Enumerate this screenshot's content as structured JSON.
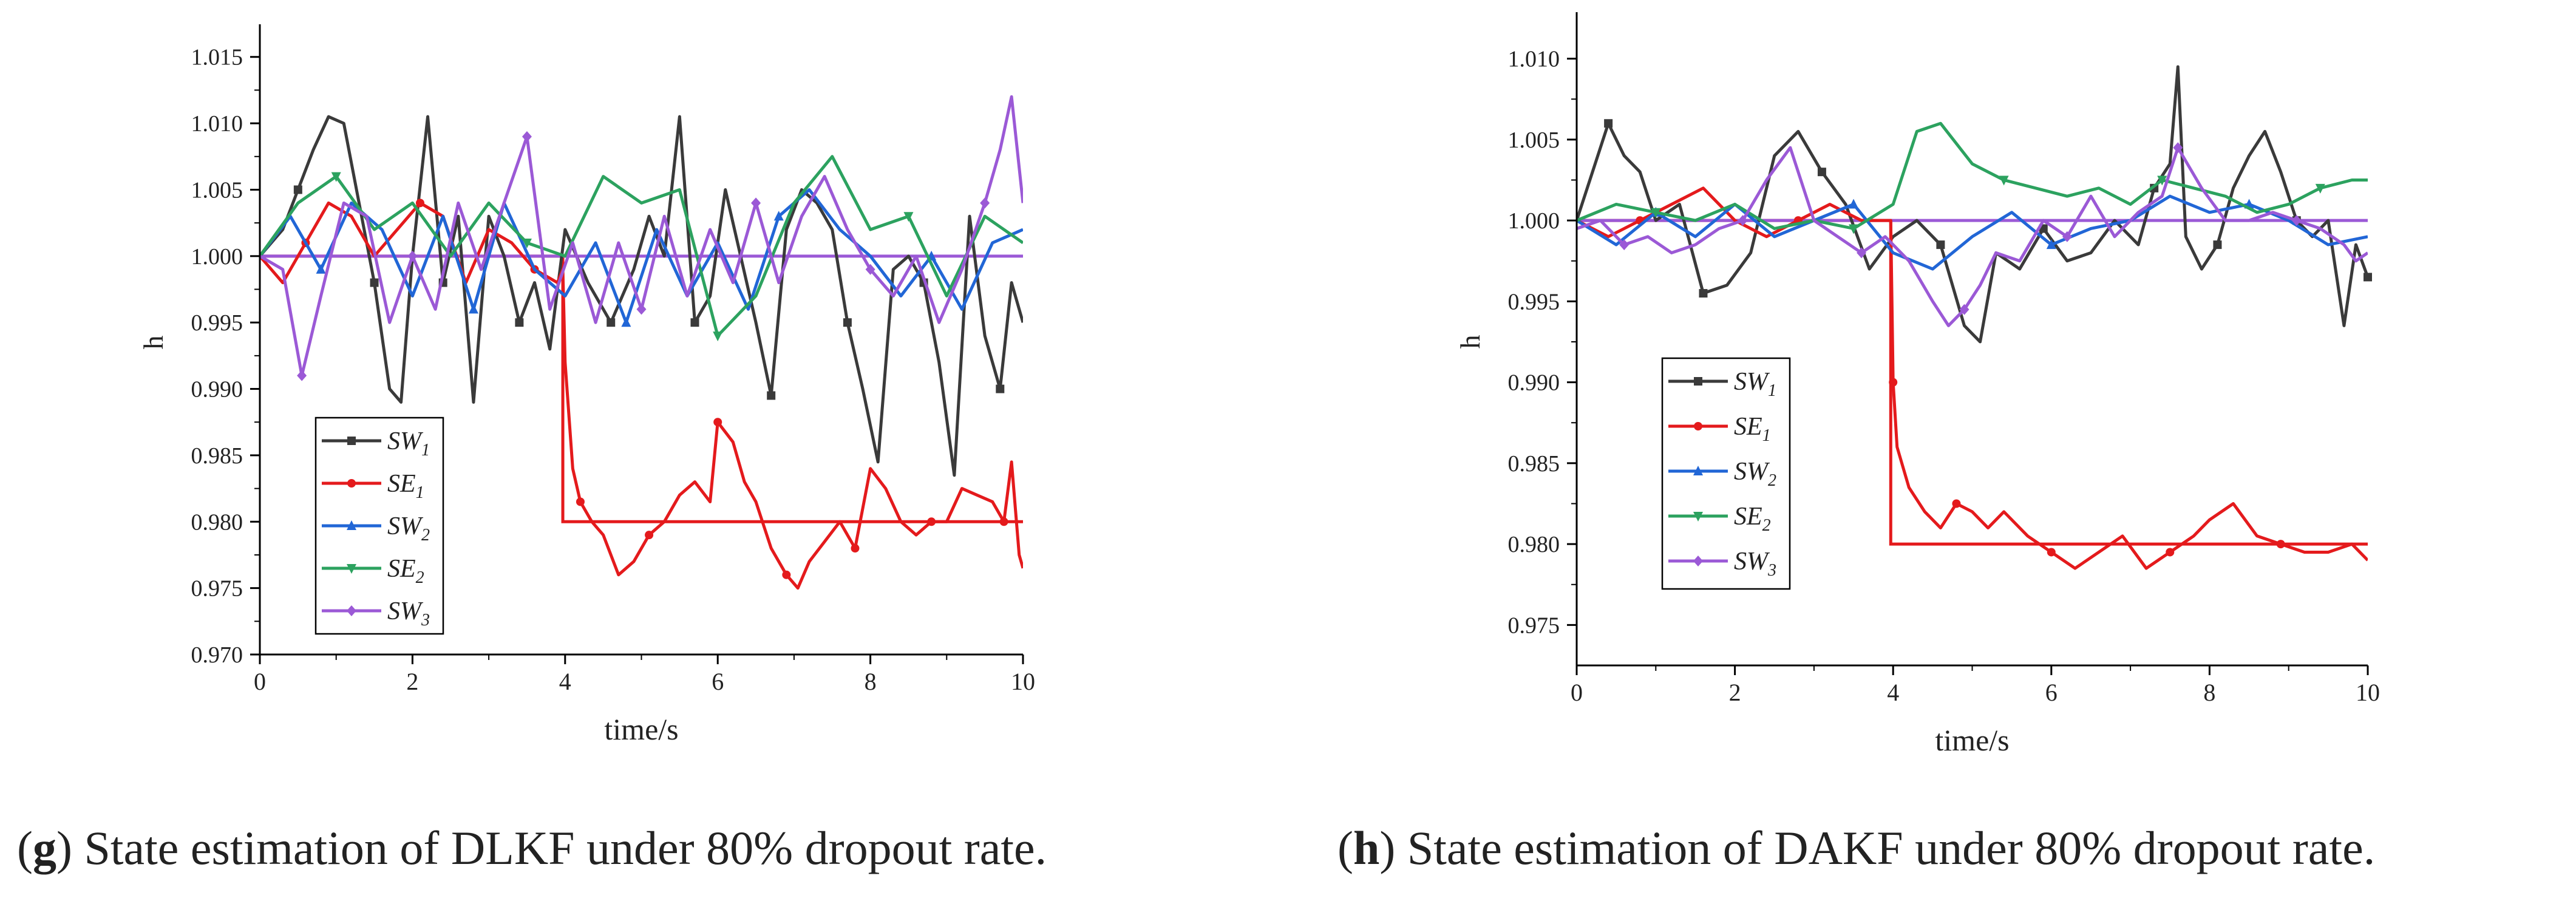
{
  "captions": [
    {
      "letter": "g",
      "text": ") State estimation of DLKF under 80% dropout rate."
    },
    {
      "letter": "h",
      "text": ") State estimation of DAKF under 80% dropout rate."
    }
  ],
  "chart_data": [
    {
      "type": "line",
      "panel": "g",
      "title": "",
      "xlabel": "time/s",
      "ylabel": "h",
      "xlim": [
        0,
        10
      ],
      "ylim": [
        0.97,
        1.017
      ],
      "xticks": [
        "0",
        "2",
        "4",
        "6",
        "8",
        "10"
      ],
      "yticks": [
        "0.970",
        "0.975",
        "0.980",
        "0.985",
        "0.990",
        "0.995",
        "1.000",
        "1.005",
        "1.010",
        "1.015"
      ],
      "legend_position": "lower-left",
      "reference_lines": [
        {
          "color": "#e41a1c",
          "x": [
            0,
            3.97,
            3.97,
            10
          ],
          "y": [
            1.0,
            1.0,
            0.98,
            0.98
          ]
        },
        {
          "color": "#9b59d6",
          "x": [
            0,
            10
          ],
          "y": [
            1.0,
            1.0
          ]
        }
      ],
      "series": [
        {
          "name": "SW",
          "sub": "1",
          "color": "#3a3a3a",
          "marker": "square",
          "x": [
            0,
            0.3,
            0.5,
            0.7,
            0.9,
            1.1,
            1.3,
            1.5,
            1.7,
            1.85,
            2.0,
            2.2,
            2.4,
            2.6,
            2.8,
            3.0,
            3.2,
            3.4,
            3.6,
            3.8,
            4.0,
            4.3,
            4.6,
            4.9,
            5.1,
            5.3,
            5.5,
            5.7,
            5.9,
            6.1,
            6.3,
            6.5,
            6.7,
            6.9,
            7.1,
            7.3,
            7.5,
            7.7,
            7.9,
            8.1,
            8.3,
            8.5,
            8.7,
            8.9,
            9.1,
            9.3,
            9.5,
            9.7,
            9.85,
            10
          ],
          "y": [
            1.0,
            1.002,
            1.005,
            1.008,
            1.0105,
            1.01,
            1.004,
            0.998,
            0.99,
            0.989,
            1.0,
            1.0105,
            0.998,
            1.003,
            0.989,
            1.003,
            1.0,
            0.995,
            0.998,
            0.993,
            1.002,
            0.998,
            0.995,
            0.999,
            1.003,
            1.0,
            1.0105,
            0.995,
            0.997,
            1.005,
            1.0,
            0.995,
            0.9895,
            1.002,
            1.005,
            1.004,
            1.002,
            0.995,
            0.99,
            0.9845,
            0.999,
            1.0,
            0.998,
            0.992,
            0.9835,
            1.003,
            0.994,
            0.99,
            0.998,
            0.995
          ]
        },
        {
          "name": "SE",
          "sub": "1",
          "color": "#e41a1c",
          "marker": "circle",
          "x": [
            0,
            0.3,
            0.6,
            0.9,
            1.2,
            1.5,
            1.8,
            2.1,
            2.4,
            2.7,
            3.0,
            3.3,
            3.6,
            3.9,
            3.97,
            4.0,
            4.1,
            4.2,
            4.35,
            4.5,
            4.7,
            4.9,
            5.1,
            5.3,
            5.5,
            5.7,
            5.9,
            6.0,
            6.2,
            6.35,
            6.5,
            6.7,
            6.9,
            7.05,
            7.2,
            7.4,
            7.6,
            7.8,
            8.0,
            8.2,
            8.4,
            8.6,
            8.8,
            9.0,
            9.2,
            9.4,
            9.6,
            9.75,
            9.85,
            9.95,
            10
          ],
          "y": [
            1.0,
            0.998,
            1.001,
            1.004,
            1.003,
            1.0,
            1.002,
            1.004,
            1.003,
            0.998,
            1.002,
            1.001,
            0.999,
            0.998,
            0.999,
            0.992,
            0.984,
            0.9815,
            0.98,
            0.979,
            0.976,
            0.977,
            0.979,
            0.98,
            0.982,
            0.983,
            0.9815,
            0.9875,
            0.986,
            0.983,
            0.9815,
            0.978,
            0.976,
            0.975,
            0.977,
            0.9785,
            0.98,
            0.978,
            0.984,
            0.9825,
            0.98,
            0.979,
            0.98,
            0.98,
            0.9825,
            0.982,
            0.9815,
            0.98,
            0.9845,
            0.9775,
            0.9765
          ]
        },
        {
          "name": "SW",
          "sub": "2",
          "color": "#2166d6",
          "marker": "triangle",
          "x": [
            0,
            0.4,
            0.8,
            1.2,
            1.6,
            2.0,
            2.4,
            2.8,
            3.2,
            3.6,
            4.0,
            4.4,
            4.8,
            5.2,
            5.6,
            6.0,
            6.4,
            6.8,
            7.2,
            7.6,
            8.0,
            8.4,
            8.8,
            9.2,
            9.6,
            10
          ],
          "y": [
            1.0,
            1.003,
            0.999,
            1.004,
            1.002,
            0.997,
            1.003,
            0.996,
            1.004,
            0.999,
            0.997,
            1.001,
            0.995,
            1.002,
            0.997,
            1.001,
            0.996,
            1.003,
            1.005,
            1.002,
            1.0,
            0.997,
            1.0,
            0.996,
            1.001,
            1.002
          ]
        },
        {
          "name": "SE",
          "sub": "2",
          "color": "#2ca25f",
          "marker": "triangle-down",
          "x": [
            0,
            0.5,
            1.0,
            1.5,
            2.0,
            2.5,
            3.0,
            3.5,
            4.0,
            4.5,
            5.0,
            5.5,
            6.0,
            6.5,
            7.0,
            7.5,
            8.0,
            8.5,
            9.0,
            9.5,
            10
          ],
          "y": [
            1.0,
            1.004,
            1.006,
            1.002,
            1.004,
            1.0,
            1.004,
            1.001,
            1.0,
            1.006,
            1.004,
            1.005,
            0.994,
            0.997,
            1.004,
            1.0075,
            1.002,
            1.003,
            0.997,
            1.003,
            1.001
          ]
        },
        {
          "name": "SW",
          "sub": "3",
          "color": "#9b59d6",
          "marker": "diamond",
          "x": [
            0,
            0.3,
            0.55,
            0.8,
            1.1,
            1.4,
            1.7,
            2.0,
            2.3,
            2.6,
            2.9,
            3.2,
            3.5,
            3.8,
            4.1,
            4.4,
            4.7,
            5.0,
            5.3,
            5.6,
            5.9,
            6.2,
            6.5,
            6.8,
            7.1,
            7.4,
            7.7,
            8.0,
            8.3,
            8.6,
            8.9,
            9.2,
            9.5,
            9.7,
            9.85,
            10
          ],
          "y": [
            1.0,
            0.999,
            0.991,
            0.997,
            1.004,
            1.003,
            0.995,
            1.0,
            0.996,
            1.004,
            0.999,
            1.004,
            1.009,
            0.996,
            1.001,
            0.995,
            1.001,
            0.996,
            1.003,
            0.997,
            1.002,
            0.998,
            1.004,
            0.998,
            1.003,
            1.006,
            1.002,
            0.999,
            0.997,
            1.0,
            0.995,
            0.999,
            1.004,
            1.008,
            1.012,
            1.004
          ]
        }
      ]
    },
    {
      "type": "line",
      "panel": "h",
      "title": "",
      "xlabel": "time/s",
      "ylabel": "h",
      "xlim": [
        0,
        10
      ],
      "ylim": [
        0.9725,
        1.0125
      ],
      "xticks": [
        "0",
        "2",
        "4",
        "6",
        "8",
        "10"
      ],
      "yticks": [
        "0.975",
        "0.980",
        "0.985",
        "0.990",
        "0.995",
        "1.000",
        "1.005",
        "1.010"
      ],
      "legend_position": "left",
      "reference_lines": [
        {
          "color": "#e41a1c",
          "x": [
            0,
            3.97,
            3.97,
            10
          ],
          "y": [
            1.0,
            1.0,
            0.98,
            0.98
          ]
        },
        {
          "color": "#9b59d6",
          "x": [
            0,
            10
          ],
          "y": [
            1.0,
            1.0
          ]
        }
      ],
      "series": [
        {
          "name": "SW",
          "sub": "1",
          "color": "#3a3a3a",
          "marker": "square",
          "x": [
            0,
            0.2,
            0.4,
            0.6,
            0.8,
            1.0,
            1.3,
            1.6,
            1.9,
            2.2,
            2.5,
            2.8,
            3.1,
            3.4,
            3.7,
            4.0,
            4.3,
            4.6,
            4.9,
            5.1,
            5.3,
            5.6,
            5.9,
            6.2,
            6.5,
            6.8,
            7.1,
            7.3,
            7.5,
            7.6,
            7.7,
            7.9,
            8.1,
            8.3,
            8.5,
            8.7,
            8.9,
            9.1,
            9.3,
            9.5,
            9.7,
            9.85,
            10
          ],
          "y": [
            1.0,
            1.003,
            1.006,
            1.004,
            1.003,
            1.0,
            1.001,
            0.9955,
            0.996,
            0.998,
            1.004,
            1.0055,
            1.003,
            1.001,
            0.997,
            0.999,
            1.0,
            0.9985,
            0.9935,
            0.9925,
            0.998,
            0.997,
            0.9995,
            0.9975,
            0.998,
            1.0,
            0.9985,
            1.002,
            1.0035,
            1.0095,
            0.999,
            0.997,
            0.9985,
            1.002,
            1.004,
            1.0055,
            1.003,
            1.0,
            0.999,
            1.0,
            0.9935,
            0.9985,
            0.9965
          ]
        },
        {
          "name": "SE",
          "sub": "1",
          "color": "#e41a1c",
          "marker": "circle",
          "x": [
            0,
            0.4,
            0.8,
            1.2,
            1.6,
            2.0,
            2.4,
            2.8,
            3.2,
            3.6,
            3.9,
            3.97,
            4.0,
            4.05,
            4.2,
            4.4,
            4.6,
            4.8,
            5.0,
            5.2,
            5.4,
            5.7,
            6.0,
            6.3,
            6.6,
            6.9,
            7.2,
            7.5,
            7.8,
            8.0,
            8.3,
            8.6,
            8.9,
            9.2,
            9.5,
            9.8,
            10
          ],
          "y": [
            1.0,
            0.999,
            1.0,
            1.001,
            1.002,
            1.0,
            0.999,
            1.0,
            1.001,
            1.0,
            1.0,
            1.0,
            0.99,
            0.986,
            0.9835,
            0.982,
            0.981,
            0.9825,
            0.982,
            0.981,
            0.982,
            0.9805,
            0.9795,
            0.9785,
            0.9795,
            0.9805,
            0.9785,
            0.9795,
            0.9805,
            0.9815,
            0.9825,
            0.9805,
            0.98,
            0.9795,
            0.9795,
            0.98,
            0.979
          ]
        },
        {
          "name": "SW",
          "sub": "2",
          "color": "#2166d6",
          "marker": "triangle",
          "x": [
            0,
            0.5,
            1.0,
            1.5,
            2.0,
            2.5,
            3.0,
            3.5,
            4.0,
            4.5,
            5.0,
            5.5,
            6.0,
            6.5,
            7.0,
            7.5,
            8.0,
            8.5,
            9.0,
            9.5,
            10
          ],
          "y": [
            1.0,
            0.9985,
            1.0005,
            0.999,
            1.001,
            0.999,
            1.0,
            1.001,
            0.998,
            0.997,
            0.999,
            1.0005,
            0.9985,
            0.9995,
            1.0,
            1.0015,
            1.0005,
            1.001,
            1.0,
            0.9985,
            0.999
          ]
        },
        {
          "name": "SE",
          "sub": "2",
          "color": "#2ca25f",
          "marker": "triangle-down",
          "x": [
            0,
            0.5,
            1.0,
            1.5,
            2.0,
            2.5,
            3.0,
            3.5,
            4.0,
            4.3,
            4.6,
            5.0,
            5.4,
            5.8,
            6.2,
            6.6,
            7.0,
            7.4,
            7.8,
            8.2,
            8.6,
            9.0,
            9.4,
            9.8,
            10
          ],
          "y": [
            1.0,
            1.001,
            1.0005,
            1.0,
            1.001,
            0.9995,
            1.0,
            0.9995,
            1.001,
            1.0055,
            1.006,
            1.0035,
            1.0025,
            1.002,
            1.0015,
            1.002,
            1.001,
            1.0025,
            1.002,
            1.0015,
            1.0005,
            1.001,
            1.002,
            1.0025,
            1.0025
          ]
        },
        {
          "name": "SW",
          "sub": "3",
          "color": "#9b59d6",
          "marker": "diamond",
          "x": [
            0,
            0.3,
            0.6,
            0.9,
            1.2,
            1.5,
            1.8,
            2.1,
            2.4,
            2.7,
            3.0,
            3.3,
            3.6,
            3.9,
            4.2,
            4.5,
            4.7,
            4.9,
            5.1,
            5.3,
            5.6,
            5.9,
            6.2,
            6.5,
            6.8,
            7.1,
            7.4,
            7.6,
            7.9,
            8.2,
            8.5,
            8.8,
            9.1,
            9.4,
            9.7,
            9.85,
            10
          ],
          "y": [
            0.9995,
            1.0,
            0.9985,
            0.999,
            0.998,
            0.9985,
            0.9995,
            1.0,
            1.0025,
            1.0045,
            1.0,
            0.999,
            0.998,
            0.999,
            0.9975,
            0.995,
            0.9935,
            0.9945,
            0.996,
            0.998,
            0.9975,
            1.0,
            0.999,
            1.0015,
            0.999,
            1.0005,
            1.0015,
            1.0045,
            1.002,
            1.0,
            1.0,
            1.0005,
            1.0,
            0.9995,
            0.9985,
            0.9975,
            0.998
          ]
        }
      ]
    }
  ]
}
